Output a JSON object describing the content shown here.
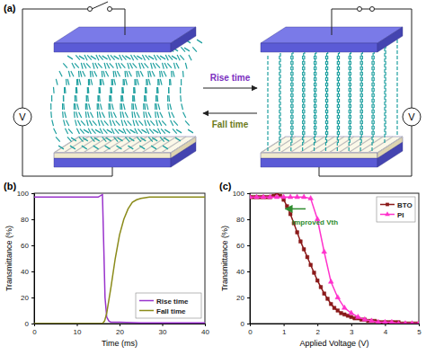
{
  "diagram": {
    "label": "(a)",
    "forward": "Rise time",
    "backward": "Fall time",
    "source": "V"
  },
  "chart_data": [
    {
      "type": "line",
      "title": "(b)",
      "xlabel": "Time (ms)",
      "ylabel": "Transmittance (%)",
      "xlim": [
        0,
        40
      ],
      "xticks": [
        0,
        10,
        20,
        30,
        40
      ],
      "ylim": [
        0,
        100
      ],
      "yticks": [
        0,
        20,
        40,
        60,
        80,
        100
      ],
      "legend": "lower right",
      "series": [
        {
          "name": "Rise time",
          "color": "#9933cc",
          "line_style": "solid",
          "x": [
            0,
            5,
            10,
            15,
            16,
            16.3,
            16.6,
            17,
            17.5,
            18,
            20,
            25,
            30,
            35,
            40
          ],
          "values": [
            97,
            97,
            97,
            97,
            99,
            60,
            20,
            5,
            2,
            1,
            1,
            0.5,
            0.5,
            0.5,
            0.5
          ]
        },
        {
          "name": "Fall time",
          "color": "#8b8b1a",
          "line_style": "solid",
          "x": [
            0,
            5,
            10,
            15,
            16,
            16.5,
            17,
            18,
            19,
            20,
            21,
            22,
            23,
            24,
            25,
            27,
            30,
            35,
            40
          ],
          "values": [
            0,
            0,
            0,
            0,
            0,
            2,
            8,
            28,
            50,
            68,
            80,
            88,
            93,
            95,
            96,
            97,
            97,
            97,
            97
          ]
        }
      ]
    },
    {
      "type": "line",
      "title": "(c)",
      "xlabel": "Applied Voltage (V)",
      "ylabel": "Transmittance (%)",
      "xlim": [
        0,
        5
      ],
      "xticks": [
        0,
        1,
        2,
        3,
        4,
        5
      ],
      "ylim": [
        0,
        100
      ],
      "yticks": [
        0,
        20,
        40,
        60,
        80,
        100
      ],
      "legend": "upper right",
      "annotations": [
        "Improved Vth"
      ],
      "series": [
        {
          "name": "BTO",
          "color": "#8b1a1a",
          "marker": "square",
          "line_style": "solid",
          "x": [
            0,
            0.1,
            0.2,
            0.3,
            0.4,
            0.5,
            0.6,
            0.7,
            0.8,
            0.9,
            1.0,
            1.1,
            1.2,
            1.3,
            1.4,
            1.5,
            1.6,
            1.7,
            1.8,
            1.9,
            2.0,
            2.1,
            2.2,
            2.3,
            2.4,
            2.5,
            2.6,
            2.7,
            2.8,
            2.9,
            3.0,
            3.1,
            3.2,
            3.3,
            3.4,
            3.5,
            3.6,
            3.7,
            3.8,
            3.9,
            4.0,
            4.1,
            4.2,
            4.3,
            4.4,
            4.5,
            4.6,
            4.7,
            4.8,
            4.9,
            5.0
          ],
          "values": [
            97,
            97,
            97,
            97,
            97,
            97,
            97,
            98,
            100,
            98,
            95,
            90,
            84,
            77,
            70,
            63,
            57,
            51,
            45,
            39,
            33,
            28,
            23,
            19,
            15,
            12,
            10,
            8,
            7,
            6,
            5,
            4,
            4,
            3,
            3,
            2,
            2,
            2,
            1,
            1,
            1,
            1,
            1,
            1,
            1,
            0,
            0,
            0,
            0,
            0,
            0
          ]
        },
        {
          "name": "PI",
          "color": "#ff33cc",
          "marker": "triangle",
          "line_style": "solid",
          "x": [
            0,
            0.2,
            0.4,
            0.6,
            0.8,
            1.0,
            1.2,
            1.4,
            1.6,
            1.8,
            2.0,
            2.2,
            2.4,
            2.6,
            2.8,
            3.0,
            3.2,
            3.4,
            3.6,
            3.8,
            4.0,
            4.2,
            4.4,
            4.6,
            4.8,
            5.0
          ],
          "values": [
            97,
            97,
            97,
            97,
            97,
            97,
            97,
            97,
            97,
            96,
            80,
            55,
            32,
            20,
            12,
            8,
            5,
            3,
            2,
            1,
            1,
            1,
            0,
            0,
            0,
            0
          ]
        }
      ]
    }
  ]
}
